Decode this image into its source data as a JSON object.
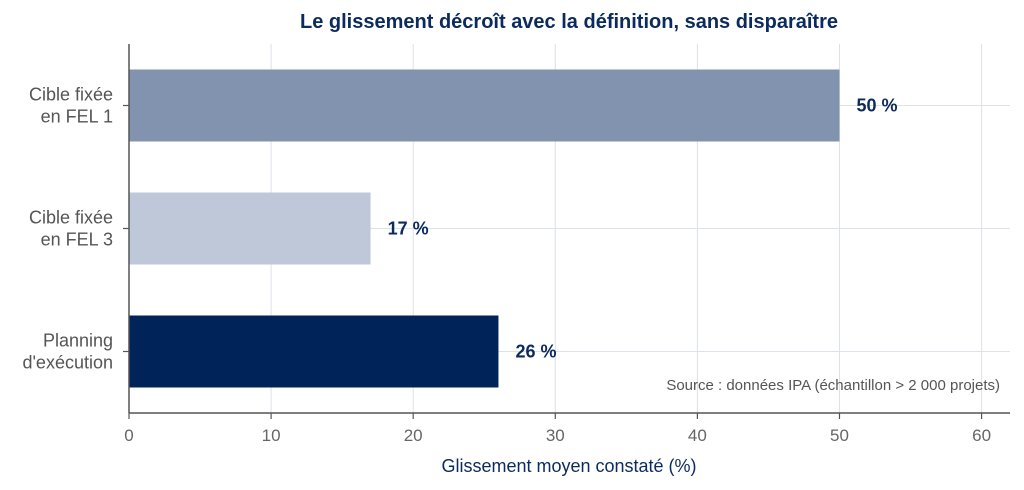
{
  "chart_data": {
    "type": "bar",
    "orientation": "horizontal",
    "title": "Le glissement décroît avec la définition, sans disparaître",
    "categories": [
      [
        "Cible fixée",
        "en FEL 1"
      ],
      [
        "Cible fixée",
        "en FEL 3"
      ],
      [
        "Planning",
        "d'exécution"
      ]
    ],
    "values": [
      50,
      17,
      26
    ],
    "data_labels": [
      "50 %",
      "17 %",
      "26 %"
    ],
    "bar_colors": [
      "#8193ae",
      "#bfc8d8",
      "#00235a"
    ],
    "xlabel": "Glissement moyen constaté  (%)",
    "ylabel": "",
    "xlim": [
      0,
      62
    ],
    "xticks": [
      0,
      10,
      20,
      30,
      40,
      50,
      60
    ],
    "grid": true,
    "legend": "none",
    "annotation": "Source : données IPA (échantillon > 2 000 projets)"
  },
  "colors": {
    "title": "#0b2a5e",
    "data_label": "#0b2a5e",
    "axis_label": "#0b2a5e",
    "grid": "#dde1e8",
    "axis": "#555555"
  }
}
